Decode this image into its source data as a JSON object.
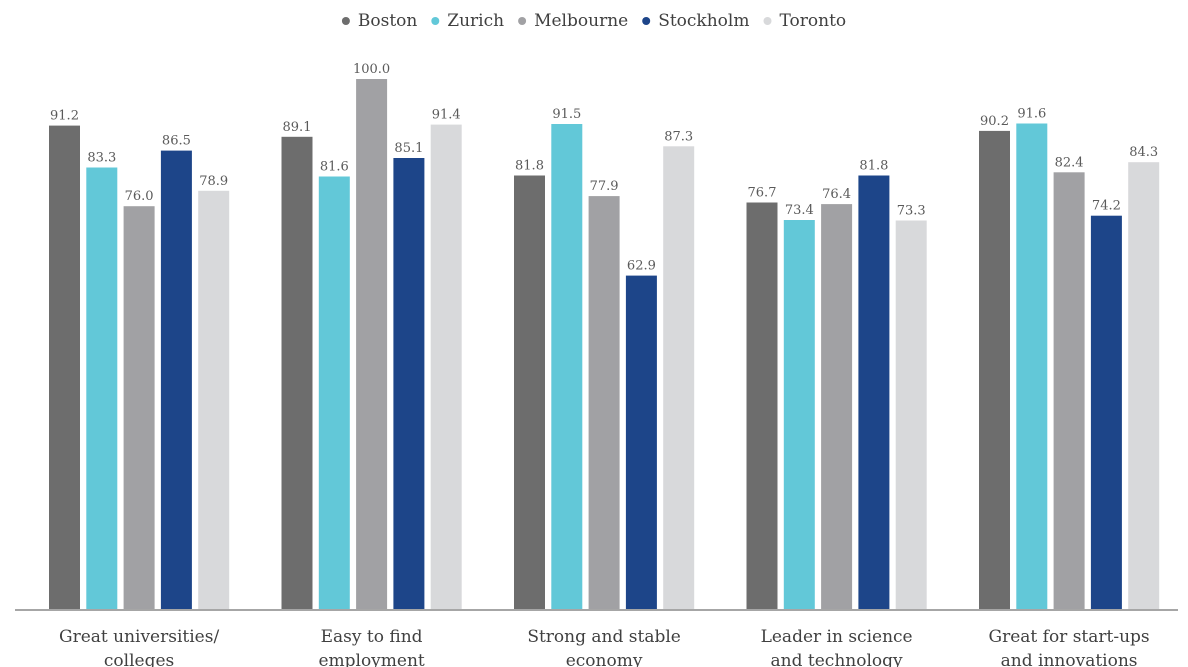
{
  "chart_data": {
    "type": "bar",
    "title": "",
    "xlabel": "",
    "ylabel": "",
    "ylim": [
      0,
      100
    ],
    "grid": false,
    "legend_position": "top-center",
    "categories": [
      [
        "Great universities/",
        "colleges"
      ],
      [
        "Easy to find",
        "employment"
      ],
      [
        "Strong and stable",
        "economy"
      ],
      [
        "Leader in science",
        "and technology"
      ],
      [
        "Great for start-ups",
        "and innovations"
      ]
    ],
    "series": [
      {
        "name": "Boston",
        "color": "#6d6d6d",
        "values": [
          91.2,
          89.1,
          81.8,
          76.7,
          90.2
        ]
      },
      {
        "name": "Zurich",
        "color": "#62c8d8",
        "values": [
          83.3,
          81.6,
          91.5,
          73.4,
          91.6
        ]
      },
      {
        "name": "Melbourne",
        "color": "#a1a1a4",
        "values": [
          76.0,
          100.0,
          77.9,
          76.4,
          82.4
        ]
      },
      {
        "name": "Stockholm",
        "color": "#1d4589",
        "values": [
          86.5,
          85.1,
          62.9,
          81.8,
          74.2
        ]
      },
      {
        "name": "Toronto",
        "color": "#d8d9db",
        "values": [
          78.9,
          91.4,
          87.3,
          73.3,
          84.3
        ]
      }
    ],
    "value_label_color": "#5a5a5a",
    "axis_color": "#a6a6a6",
    "text_color": "#404040"
  }
}
